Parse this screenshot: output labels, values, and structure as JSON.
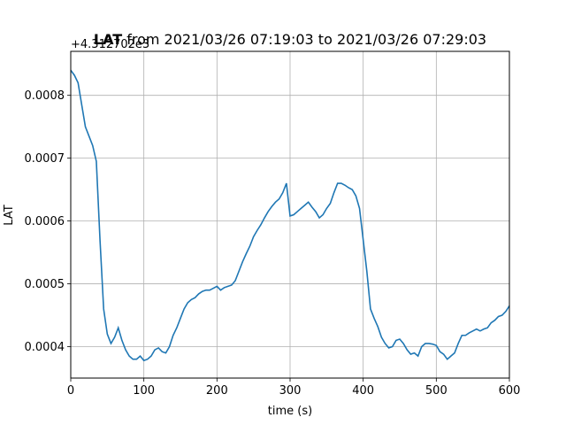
{
  "chart_data": {
    "type": "line",
    "title_bold": "LAT",
    "title_rest": " from 2021/03/26 07:19:03 to 2021/03/26 07:29:03",
    "xlabel": "time (s)",
    "ylabel": "LAT",
    "offset_text": "+4.312702e3",
    "xlim": [
      0,
      600
    ],
    "ylim": [
      0.00035,
      0.00087
    ],
    "x_ticks": [
      0,
      100,
      200,
      300,
      400,
      500,
      600
    ],
    "y_ticks": [
      0.0004,
      0.0005,
      0.0006,
      0.0007,
      0.0008
    ],
    "x_tick_labels": [
      "0",
      "100",
      "200",
      "300",
      "400",
      "500",
      "600"
    ],
    "y_tick_labels": [
      "0.0004",
      "0.0005",
      "0.0006",
      "0.0007",
      "0.0008"
    ],
    "grid": true,
    "series_color": "#1f77b4",
    "series": [
      {
        "x": [
          0,
          5,
          10,
          15,
          20,
          25,
          30,
          35,
          40,
          45,
          50,
          55,
          60,
          65,
          70,
          75,
          80,
          85,
          90,
          95,
          100,
          105,
          110,
          115,
          120,
          125,
          130,
          135,
          140,
          145,
          150,
          155,
          160,
          165,
          170,
          175,
          180,
          185,
          190,
          195,
          200,
          205,
          210,
          215,
          220,
          225,
          230,
          235,
          240,
          245,
          250,
          255,
          260,
          265,
          270,
          275,
          280,
          285,
          290,
          295,
          300,
          305,
          310,
          315,
          320,
          325,
          330,
          335,
          340,
          345,
          350,
          355,
          360,
          365,
          370,
          375,
          380,
          385,
          390,
          395,
          400,
          405,
          410,
          415,
          420,
          425,
          430,
          435,
          440,
          445,
          450,
          455,
          460,
          465,
          470,
          475,
          480,
          485,
          490,
          495,
          500,
          505,
          510,
          515,
          520,
          525,
          530,
          535,
          540,
          545,
          550,
          555,
          560,
          565,
          570,
          575,
          580,
          585,
          590,
          595,
          600
        ],
        "values": [
          0.00084,
          0.000832,
          0.00082,
          0.000785,
          0.00075,
          0.000735,
          0.00072,
          0.000695,
          0.00057,
          0.00046,
          0.00042,
          0.000405,
          0.000415,
          0.00043,
          0.00041,
          0.000395,
          0.000385,
          0.00038,
          0.00038,
          0.000385,
          0.000378,
          0.00038,
          0.000385,
          0.000395,
          0.000398,
          0.000392,
          0.00039,
          0.0004,
          0.000418,
          0.00043,
          0.000445,
          0.00046,
          0.00047,
          0.000475,
          0.000478,
          0.000484,
          0.000488,
          0.00049,
          0.00049,
          0.000493,
          0.000496,
          0.00049,
          0.000494,
          0.000496,
          0.000498,
          0.000505,
          0.00052,
          0.000535,
          0.000548,
          0.00056,
          0.000575,
          0.000585,
          0.000594,
          0.000605,
          0.000615,
          0.000623,
          0.00063,
          0.000635,
          0.000645,
          0.00066,
          0.000608,
          0.00061,
          0.000615,
          0.00062,
          0.000625,
          0.00063,
          0.000622,
          0.000615,
          0.000605,
          0.00061,
          0.00062,
          0.000628,
          0.000645,
          0.00066,
          0.00066,
          0.000657,
          0.000653,
          0.00065,
          0.00064,
          0.00062,
          0.00057,
          0.00052,
          0.00046,
          0.000445,
          0.000432,
          0.000415,
          0.000405,
          0.000398,
          0.0004,
          0.00041,
          0.000412,
          0.000405,
          0.000395,
          0.000388,
          0.00039,
          0.000385,
          0.0004,
          0.000405,
          0.000405,
          0.000404,
          0.000402,
          0.000392,
          0.000388,
          0.00038,
          0.000385,
          0.00039,
          0.000405,
          0.000418,
          0.000418,
          0.000422,
          0.000425,
          0.000428,
          0.000425,
          0.000428,
          0.00043,
          0.000438,
          0.000442,
          0.000448,
          0.00045,
          0.000456,
          0.000465
        ]
      }
    ]
  }
}
